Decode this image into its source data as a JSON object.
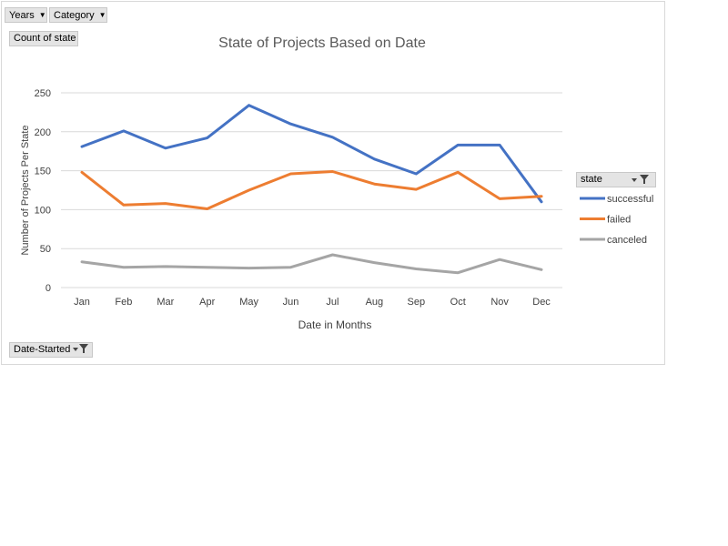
{
  "pivot": {
    "years_label": "Years",
    "category_label": "Category",
    "count_label": "Count of state",
    "date_started_label": "Date-Started",
    "legend_field": "state"
  },
  "chart_data": {
    "type": "line",
    "title": "State of Projects Based on Date",
    "xlabel": "Date in Months",
    "ylabel": "Number  of Projects Per State",
    "categories": [
      "Jan",
      "Feb",
      "Mar",
      "Apr",
      "May",
      "Jun",
      "Jul",
      "Aug",
      "Sep",
      "Oct",
      "Nov",
      "Dec"
    ],
    "ylim": [
      0,
      250
    ],
    "yticks": [
      0,
      50,
      100,
      150,
      200,
      250
    ],
    "grid": true,
    "legend_position": "right",
    "series": [
      {
        "name": "successful",
        "color": "#4472c4",
        "values": [
          181,
          201,
          179,
          192,
          234,
          210,
          193,
          165,
          146,
          183,
          183,
          110
        ]
      },
      {
        "name": "failed",
        "color": "#ed7d31",
        "values": [
          148,
          106,
          108,
          101,
          125,
          146,
          149,
          133,
          126,
          148,
          114,
          117
        ]
      },
      {
        "name": "canceled",
        "color": "#a5a5a5",
        "values": [
          33,
          26,
          27,
          26,
          25,
          26,
          42,
          32,
          24,
          19,
          36,
          23
        ]
      }
    ]
  }
}
